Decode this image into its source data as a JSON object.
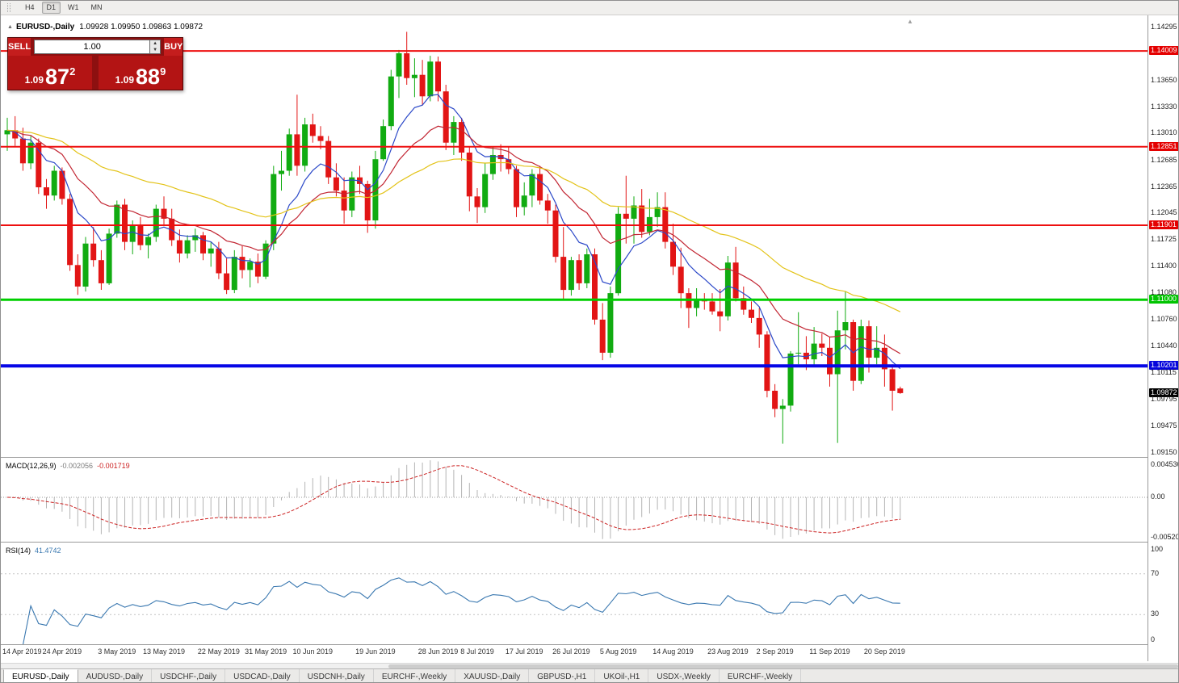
{
  "toolbar": {
    "timeframes": [
      {
        "label": "H4",
        "active": false
      },
      {
        "label": "D1",
        "active": true
      },
      {
        "label": "W1",
        "active": false
      },
      {
        "label": "MN",
        "active": false
      }
    ]
  },
  "chart": {
    "collapse_arrow": "▲",
    "symbol_title": "EURUSD-,Daily",
    "ohlc_text": "1.09928 1.09950 1.09863 1.09872",
    "shift_marker": "▲"
  },
  "one_click": {
    "sell_label": "SELL",
    "buy_label": "BUY",
    "volume": "1.00",
    "spin_up": "▲",
    "spin_down": "▼",
    "sell_price_prefix": "1.09",
    "sell_price_big": "87",
    "sell_price_frac": "2",
    "buy_price_prefix": "1.09",
    "buy_price_big": "88",
    "buy_price_frac": "9"
  },
  "price_axis": {
    "labels": [
      {
        "text": "1.14295",
        "price": 1.14295,
        "style": "plain"
      },
      {
        "text": "1.14009",
        "price": 1.14009,
        "style": "red"
      },
      {
        "text": "1.13650",
        "price": 1.1365,
        "style": "plain"
      },
      {
        "text": "1.13330",
        "price": 1.1333,
        "style": "plain"
      },
      {
        "text": "1.13010",
        "price": 1.1301,
        "style": "plain"
      },
      {
        "text": "1.12851",
        "price": 1.12851,
        "style": "red"
      },
      {
        "text": "1.12685",
        "price": 1.12685,
        "style": "plain"
      },
      {
        "text": "1.12365",
        "price": 1.12365,
        "style": "plain"
      },
      {
        "text": "1.12045",
        "price": 1.12045,
        "style": "plain"
      },
      {
        "text": "1.11901",
        "price": 1.11901,
        "style": "red"
      },
      {
        "text": "1.11725",
        "price": 1.11725,
        "style": "plain"
      },
      {
        "text": "1.11400",
        "price": 1.114,
        "style": "plain"
      },
      {
        "text": "1.11080",
        "price": 1.1108,
        "style": "plain"
      },
      {
        "text": "1.11000",
        "price": 1.11,
        "style": "green"
      },
      {
        "text": "1.10760",
        "price": 1.1076,
        "style": "plain"
      },
      {
        "text": "1.10440",
        "price": 1.1044,
        "style": "plain"
      },
      {
        "text": "1.10201",
        "price": 1.10201,
        "style": "blue"
      },
      {
        "text": "1.10115",
        "price": 1.10115,
        "style": "plain"
      },
      {
        "text": "1.09872",
        "price": 1.09872,
        "style": "black"
      },
      {
        "text": "1.09795",
        "price": 1.09795,
        "style": "plain"
      },
      {
        "text": "1.09475",
        "price": 1.09475,
        "style": "plain"
      },
      {
        "text": "1.09150",
        "price": 1.0915,
        "style": "plain"
      }
    ]
  },
  "indicators": {
    "macd": {
      "label": "MACD(12,26,9)",
      "value_main": "-0.002056",
      "value_signal": "-0.001719",
      "params": {
        "fast": 12,
        "slow": 26,
        "signal": 9
      },
      "axis": [
        "0.004536",
        "0.00",
        "-0.005201"
      ]
    },
    "rsi": {
      "label": "RSI(14)",
      "value": "41.4742",
      "period": 14,
      "levels": [
        70,
        30
      ],
      "axis": [
        "100",
        "70",
        "30",
        "0"
      ]
    }
  },
  "chart_data": {
    "type": "candlestick",
    "title": "EURUSD-,Daily",
    "y_axis": {
      "max": 1.144,
      "min": 1.091
    },
    "macd_range": {
      "max": 0.004536,
      "min": -0.005201
    },
    "colors": {
      "up": "#11ab11",
      "down": "#e21515",
      "macd_hist": "#b4b4b4",
      "macd_signal": "#cc2222",
      "rsi": "#3a78b0"
    },
    "moving_averages": [
      {
        "name": "fast-ma",
        "period": 8,
        "color": "#2b48c8"
      },
      {
        "name": "mid-ma",
        "period": 18,
        "color": "#c22633"
      },
      {
        "name": "slow-ma",
        "period": 45,
        "color": "#e3c318"
      }
    ],
    "levels": [
      {
        "price": 1.14009,
        "color": "#ee0f0f",
        "width": 2
      },
      {
        "price": 1.12851,
        "color": "#ee0f0f",
        "width": 2
      },
      {
        "price": 1.11901,
        "color": "#ee0f0f",
        "width": 2
      },
      {
        "price": 1.11,
        "color": "#00cf00",
        "width": 3
      },
      {
        "price": 1.10201,
        "color": "#0606e6",
        "width": 4
      }
    ],
    "date_labels": [
      {
        "text": "14 Apr 2019",
        "candle": 0
      },
      {
        "text": "24 Apr 2019",
        "candle": 7
      },
      {
        "text": "3 May 2019",
        "candle": 14
      },
      {
        "text": "13 May 2019",
        "candle": 20
      },
      {
        "text": "22 May 2019",
        "candle": 27
      },
      {
        "text": "31 May 2019",
        "candle": 33
      },
      {
        "text": "10 Jun 2019",
        "candle": 39
      },
      {
        "text": "19 Jun 2019",
        "candle": 47
      },
      {
        "text": "28 Jun 2019",
        "candle": 55
      },
      {
        "text": "8 Jul 2019",
        "candle": 60
      },
      {
        "text": "17 Jul 2019",
        "candle": 66
      },
      {
        "text": "26 Jul 2019",
        "candle": 72
      },
      {
        "text": "5 Aug 2019",
        "candle": 78
      },
      {
        "text": "14 Aug 2019",
        "candle": 85
      },
      {
        "text": "23 Aug 2019",
        "candle": 92
      },
      {
        "text": "2 Sep 2019",
        "candle": 98
      },
      {
        "text": "11 Sep 2019",
        "candle": 105
      },
      {
        "text": "20 Sep 2019",
        "candle": 112
      }
    ],
    "candles": [
      [
        1.13,
        1.132,
        1.128,
        1.1305
      ],
      [
        1.1305,
        1.1322,
        1.1286,
        1.1295
      ],
      [
        1.1295,
        1.1308,
        1.1256,
        1.1265
      ],
      [
        1.1265,
        1.1298,
        1.1258,
        1.129
      ],
      [
        1.129,
        1.1295,
        1.1228,
        1.1236
      ],
      [
        1.1236,
        1.1246,
        1.121,
        1.1226
      ],
      [
        1.1226,
        1.1262,
        1.122,
        1.1256
      ],
      [
        1.1256,
        1.126,
        1.1215,
        1.1222
      ],
      [
        1.1222,
        1.1228,
        1.1135,
        1.1142
      ],
      [
        1.1142,
        1.1155,
        1.1106,
        1.1116
      ],
      [
        1.1116,
        1.1176,
        1.111,
        1.1168
      ],
      [
        1.1168,
        1.1188,
        1.114,
        1.1148
      ],
      [
        1.1148,
        1.116,
        1.1112,
        1.112
      ],
      [
        1.112,
        1.1186,
        1.1118,
        1.118
      ],
      [
        1.118,
        1.122,
        1.1175,
        1.1215
      ],
      [
        1.1215,
        1.1222,
        1.116,
        1.117
      ],
      [
        1.117,
        1.1196,
        1.1155,
        1.119
      ],
      [
        1.119,
        1.12,
        1.116,
        1.1166
      ],
      [
        1.1166,
        1.118,
        1.115,
        1.1176
      ],
      [
        1.1176,
        1.1215,
        1.117,
        1.121
      ],
      [
        1.121,
        1.1225,
        1.119,
        1.1198
      ],
      [
        1.1198,
        1.121,
        1.1165,
        1.1172
      ],
      [
        1.1172,
        1.1185,
        1.1145,
        1.1156
      ],
      [
        1.1156,
        1.1178,
        1.115,
        1.1172
      ],
      [
        1.1172,
        1.1186,
        1.1158,
        1.1178
      ],
      [
        1.1178,
        1.1182,
        1.1148,
        1.1156
      ],
      [
        1.1156,
        1.117,
        1.114,
        1.1162
      ],
      [
        1.1162,
        1.117,
        1.1125,
        1.1132
      ],
      [
        1.1132,
        1.115,
        1.1107,
        1.1112
      ],
      [
        1.1112,
        1.116,
        1.1108,
        1.1152
      ],
      [
        1.1152,
        1.1165,
        1.1126,
        1.1136
      ],
      [
        1.1136,
        1.115,
        1.1115,
        1.1146
      ],
      [
        1.1146,
        1.1156,
        1.112,
        1.1128
      ],
      [
        1.1128,
        1.1172,
        1.1125,
        1.1168
      ],
      [
        1.1168,
        1.1262,
        1.116,
        1.1252
      ],
      [
        1.1252,
        1.128,
        1.1232,
        1.1256
      ],
      [
        1.1256,
        1.1307,
        1.125,
        1.13
      ],
      [
        1.13,
        1.1348,
        1.125,
        1.1262
      ],
      [
        1.1262,
        1.132,
        1.1255,
        1.1312
      ],
      [
        1.1312,
        1.1325,
        1.129,
        1.1298
      ],
      [
        1.1298,
        1.131,
        1.1282,
        1.1292
      ],
      [
        1.1292,
        1.1298,
        1.124,
        1.1248
      ],
      [
        1.1248,
        1.1265,
        1.1225,
        1.1232
      ],
      [
        1.1232,
        1.1248,
        1.1192,
        1.1208
      ],
      [
        1.1208,
        1.1255,
        1.12,
        1.1248
      ],
      [
        1.1248,
        1.1262,
        1.1228,
        1.124
      ],
      [
        1.124,
        1.1244,
        1.1181,
        1.1196
      ],
      [
        1.1196,
        1.128,
        1.1186,
        1.127
      ],
      [
        1.127,
        1.1318,
        1.1268,
        1.131
      ],
      [
        1.131,
        1.1378,
        1.1305,
        1.137
      ],
      [
        1.137,
        1.1402,
        1.1344,
        1.1398
      ],
      [
        1.1398,
        1.1424,
        1.136,
        1.1368
      ],
      [
        1.1368,
        1.1392,
        1.1345,
        1.1372
      ],
      [
        1.1372,
        1.139,
        1.1335,
        1.1346
      ],
      [
        1.1346,
        1.1395,
        1.134,
        1.1388
      ],
      [
        1.1388,
        1.1394,
        1.134,
        1.1352
      ],
      [
        1.1352,
        1.136,
        1.1281,
        1.129
      ],
      [
        1.129,
        1.1322,
        1.1275,
        1.1315
      ],
      [
        1.1315,
        1.132,
        1.1268,
        1.1278
      ],
      [
        1.1278,
        1.1285,
        1.1207,
        1.1225
      ],
      [
        1.1225,
        1.1235,
        1.1193,
        1.1212
      ],
      [
        1.1212,
        1.1265,
        1.1205,
        1.1252
      ],
      [
        1.1252,
        1.1285,
        1.1245,
        1.1275
      ],
      [
        1.1275,
        1.1288,
        1.1255,
        1.127
      ],
      [
        1.127,
        1.1285,
        1.1252,
        1.1258
      ],
      [
        1.1258,
        1.1262,
        1.12,
        1.1212
      ],
      [
        1.1212,
        1.1242,
        1.1202,
        1.1226
      ],
      [
        1.1226,
        1.1258,
        1.1212,
        1.1252
      ],
      [
        1.1252,
        1.1262,
        1.1215,
        1.122
      ],
      [
        1.122,
        1.1228,
        1.1192,
        1.1208
      ],
      [
        1.1208,
        1.1215,
        1.1145,
        1.1152
      ],
      [
        1.1152,
        1.1188,
        1.1101,
        1.1112
      ],
      [
        1.1112,
        1.1152,
        1.1105,
        1.1148
      ],
      [
        1.1148,
        1.1155,
        1.1112,
        1.112
      ],
      [
        1.112,
        1.1162,
        1.1114,
        1.1155
      ],
      [
        1.1155,
        1.1162,
        1.107,
        1.1076
      ],
      [
        1.1076,
        1.1096,
        1.1027,
        1.1036
      ],
      [
        1.1036,
        1.1116,
        1.103,
        1.1108
      ],
      [
        1.1108,
        1.1212,
        1.1105,
        1.1204
      ],
      [
        1.1204,
        1.125,
        1.1168,
        1.1198
      ],
      [
        1.1198,
        1.1225,
        1.1168,
        1.1214
      ],
      [
        1.1214,
        1.1234,
        1.1175,
        1.1182
      ],
      [
        1.1182,
        1.1222,
        1.1178,
        1.12
      ],
      [
        1.12,
        1.123,
        1.1188,
        1.1212
      ],
      [
        1.1212,
        1.123,
        1.1162,
        1.117
      ],
      [
        1.117,
        1.1192,
        1.113,
        1.114
      ],
      [
        1.114,
        1.1163,
        1.109,
        1.1108
      ],
      [
        1.1108,
        1.1114,
        1.1066,
        1.109
      ],
      [
        1.109,
        1.1114,
        1.108,
        1.11
      ],
      [
        1.11,
        1.1108,
        1.1088,
        1.1098
      ],
      [
        1.1098,
        1.1108,
        1.1082,
        1.1086
      ],
      [
        1.1086,
        1.1113,
        1.1062,
        1.108
      ],
      [
        1.108,
        1.1153,
        1.1075,
        1.1145
      ],
      [
        1.1145,
        1.1164,
        1.1098,
        1.1102
      ],
      [
        1.1102,
        1.1116,
        1.1082,
        1.1088
      ],
      [
        1.1088,
        1.1098,
        1.1072,
        1.1078
      ],
      [
        1.1078,
        1.109,
        1.1042,
        1.1058
      ],
      [
        1.1058,
        1.1062,
        1.0982,
        1.099
      ],
      [
        1.099,
        1.0998,
        1.0958,
        1.0968
      ],
      [
        1.0968,
        1.098,
        1.0926,
        1.0972
      ],
      [
        1.0972,
        1.1038,
        1.0965,
        1.1035
      ],
      [
        1.1035,
        1.1085,
        1.1022,
        1.1036
      ],
      [
        1.1036,
        1.1056,
        1.1015,
        1.1028
      ],
      [
        1.1028,
        1.1067,
        1.102,
        1.1047
      ],
      [
        1.1047,
        1.1059,
        1.1032,
        1.1042
      ],
      [
        1.1042,
        1.1055,
        1.0995,
        1.101
      ],
      [
        1.101,
        1.1087,
        1.0927,
        1.1063
      ],
      [
        1.1063,
        1.111,
        1.104,
        1.1073
      ],
      [
        1.1073,
        1.1076,
        1.099,
        1.1002
      ],
      [
        1.1002,
        1.1076,
        1.0998,
        1.1068
      ],
      [
        1.1068,
        1.1075,
        1.1012,
        1.103
      ],
      [
        1.103,
        1.1068,
        1.1022,
        1.1042
      ],
      [
        1.1042,
        1.1058,
        1.0995,
        1.1016
      ],
      [
        1.1016,
        1.1022,
        1.0966,
        1.099
      ],
      [
        1.09928,
        1.0995,
        1.09863,
        1.09872
      ]
    ]
  },
  "tabs": [
    {
      "label": "EURUSD-,Daily",
      "active": true
    },
    {
      "label": "AUDUSD-,Daily",
      "active": false
    },
    {
      "label": "USDCHF-,Daily",
      "active": false
    },
    {
      "label": "USDCAD-,Daily",
      "active": false
    },
    {
      "label": "USDCNH-,Daily",
      "active": false
    },
    {
      "label": "EURCHF-,Weekly",
      "active": false
    },
    {
      "label": "XAUUSD-,Daily",
      "active": false
    },
    {
      "label": "GBPUSD-,H1",
      "active": false
    },
    {
      "label": "UKOil-,H1",
      "active": false
    },
    {
      "label": "USDX-,Weekly",
      "active": false
    },
    {
      "label": "EURCHF-,Weekly",
      "active": false
    }
  ]
}
